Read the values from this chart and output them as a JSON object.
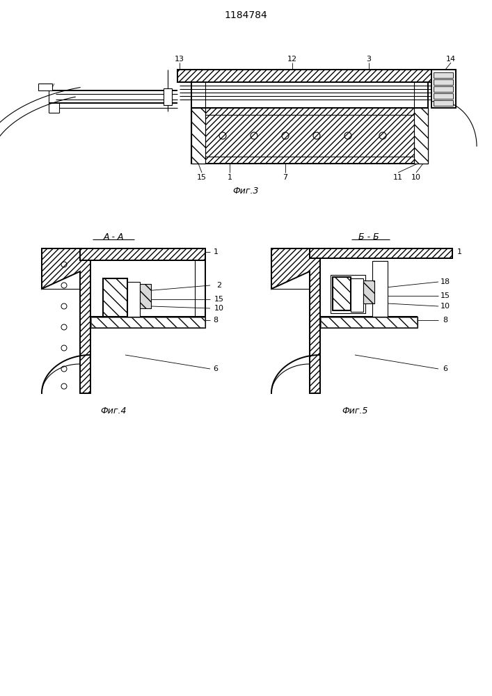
{
  "title": "1184784",
  "bg_color": "#ffffff",
  "line_color": "#000000",
  "fig3_caption": "Фиг.3",
  "fig4_caption": "Фиг.4",
  "fig5_caption": "Фиг.5",
  "fig4_label": "А - А",
  "fig5_label": "Б - Б"
}
